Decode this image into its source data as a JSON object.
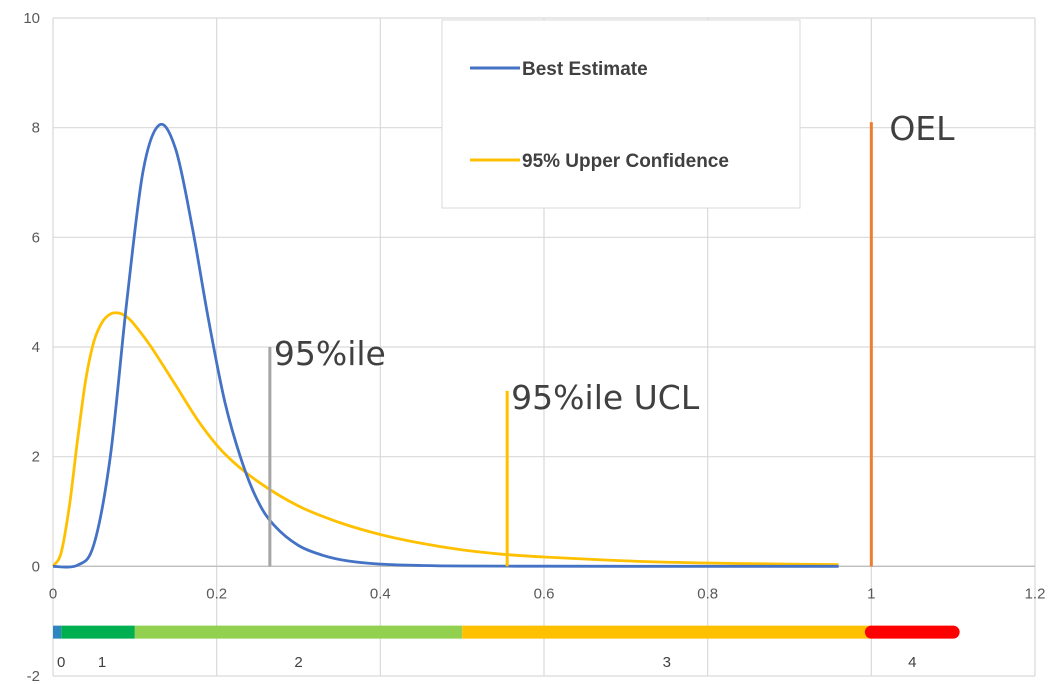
{
  "chart_data": {
    "type": "line",
    "xlim": [
      0,
      1.2
    ],
    "ylim": [
      -2,
      10
    ],
    "x_ticks": [
      "0",
      "0.2",
      "0.4",
      "0.6",
      "0.8",
      "1",
      "1.2"
    ],
    "y_ticks": [
      "-2",
      "0",
      "2",
      "4",
      "6",
      "8",
      "10"
    ],
    "grid": true,
    "legend_position": "top-center",
    "series": [
      {
        "name": "Best Estimate",
        "color": "#4472C4",
        "x": [
          0,
          0.03,
          0.05,
          0.07,
          0.09,
          0.11,
          0.13,
          0.15,
          0.17,
          0.19,
          0.21,
          0.23,
          0.25,
          0.27,
          0.3,
          0.33,
          0.36,
          0.4,
          0.45,
          0.5,
          0.6,
          0.7,
          0.8,
          0.9,
          0.96
        ],
        "y": [
          0,
          0.02,
          0.4,
          2.0,
          4.8,
          7.2,
          8.05,
          7.6,
          6.2,
          4.5,
          3.0,
          1.95,
          1.2,
          0.75,
          0.38,
          0.2,
          0.1,
          0.04,
          0.015,
          0.006,
          0.002,
          0.001,
          0.0,
          0.0,
          0.0
        ]
      },
      {
        "name": "95% Upper Confidence",
        "color": "#FFC000",
        "x": [
          0,
          0.01,
          0.02,
          0.03,
          0.04,
          0.05,
          0.06,
          0.07,
          0.08,
          0.09,
          0.1,
          0.12,
          0.15,
          0.18,
          0.21,
          0.25,
          0.3,
          0.35,
          0.4,
          0.45,
          0.5,
          0.55,
          0.6,
          0.7,
          0.8,
          0.9,
          0.96
        ],
        "y": [
          0,
          0.25,
          1.1,
          2.3,
          3.4,
          4.1,
          4.45,
          4.6,
          4.62,
          4.55,
          4.4,
          4.0,
          3.3,
          2.6,
          2.05,
          1.55,
          1.1,
          0.8,
          0.58,
          0.42,
          0.3,
          0.22,
          0.17,
          0.1,
          0.06,
          0.04,
          0.03
        ]
      }
    ],
    "reference_lines": [
      {
        "label": "95%ile",
        "x": 0.265,
        "y_top": 4.0,
        "color": "#A5A5A5"
      },
      {
        "label": "95%ile UCL",
        "x": 0.555,
        "y_top": 3.2,
        "color": "#FFC000"
      },
      {
        "label": "OEL",
        "x": 1.0,
        "y_top": 8.1,
        "color": "#ED7D31"
      }
    ],
    "category_band": {
      "y": -1.2,
      "segments": [
        {
          "from": 0,
          "to": 0.01,
          "color": "#2E86C1"
        },
        {
          "from": 0.01,
          "to": 0.1,
          "color": "#00B050"
        },
        {
          "from": 0.1,
          "to": 0.5,
          "color": "#92D050"
        },
        {
          "from": 0.5,
          "to": 1.0,
          "color": "#FFC000"
        },
        {
          "from": 1.0,
          "to": 1.1,
          "color": "#FF0000"
        }
      ],
      "labels": [
        {
          "text": "0",
          "x": 0.01
        },
        {
          "text": "1",
          "x": 0.06
        },
        {
          "text": "2",
          "x": 0.3
        },
        {
          "text": "3",
          "x": 0.75
        },
        {
          "text": "4",
          "x": 1.05
        }
      ]
    }
  }
}
